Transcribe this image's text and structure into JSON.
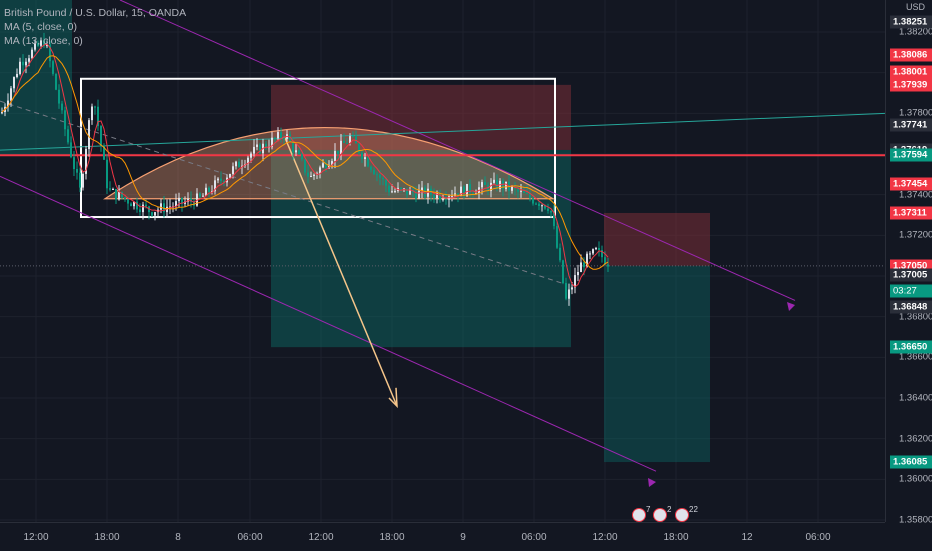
{
  "instrument": {
    "title": "British Pound / U.S. Dollar, 15, OANDA",
    "indicators": [
      "MA (5, close, 0)",
      "MA (13, close, 0)"
    ]
  },
  "y_axis": {
    "currency": "USD",
    "ticks": [
      "1.38200",
      "1.38000",
      "1.37800",
      "1.37600",
      "1.37400",
      "1.37200",
      "1.37000",
      "1.36800",
      "1.36600",
      "1.36400",
      "1.36200",
      "1.36000",
      "1.35800"
    ],
    "price_labels": [
      {
        "text": "1.38251",
        "bg": "#2a2e39",
        "price": 1.38251
      },
      {
        "text": "1.38086",
        "bg": "#f23645",
        "price": 1.38086
      },
      {
        "text": "1.38001",
        "bg": "#f23645",
        "price": 1.38001
      },
      {
        "text": "1.37939",
        "bg": "#f23645",
        "price": 1.37939
      },
      {
        "text": "1.37741",
        "bg": "#2a2e39",
        "price": 1.37741
      },
      {
        "text": "1.37619",
        "bg": "#2a2e39",
        "price": 1.37619
      },
      {
        "text": "1.37594",
        "bg": "#089981",
        "price": 1.37594
      },
      {
        "text": "1.37454",
        "bg": "#f23645",
        "price": 1.37454
      },
      {
        "text": "1.37311",
        "bg": "#f23645",
        "price": 1.37311
      },
      {
        "text": "1.37050",
        "bg": "#f23645",
        "price": 1.3705
      },
      {
        "text": "03:27",
        "bg": "#089981",
        "price": 1.36925,
        "clock": true
      },
      {
        "text": "1.37005",
        "bg": "#2a2e39",
        "price": 1.37005
      },
      {
        "text": "1.36848",
        "bg": "#2a2e39",
        "price": 1.36848
      },
      {
        "text": "1.36650",
        "bg": "#089981",
        "price": 1.3665
      },
      {
        "text": "1.36085",
        "bg": "#089981",
        "price": 1.36085
      }
    ]
  },
  "x_axis": {
    "ticks": [
      "12:00",
      "18:00",
      "8",
      "06:00",
      "12:00",
      "18:00",
      "9",
      "06:00",
      "12:00",
      "18:00",
      "12",
      "06:00"
    ]
  },
  "events": [
    {
      "count": "7"
    },
    {
      "count": "2"
    },
    {
      "count": "22"
    }
  ],
  "colors": {
    "bg": "#131722",
    "up": "#e0e3eb",
    "down": "#089981",
    "ma5": "#f23645",
    "ma13": "#ff9800",
    "channel": "#9c27b0",
    "box": "#ffffff",
    "arc": "#f7a072",
    "arrow": "#f5c58a",
    "profit": "#0a6e68",
    "loss": "#7a2e37",
    "hline": "#f23645",
    "teal_line": "#26a69a"
  }
}
